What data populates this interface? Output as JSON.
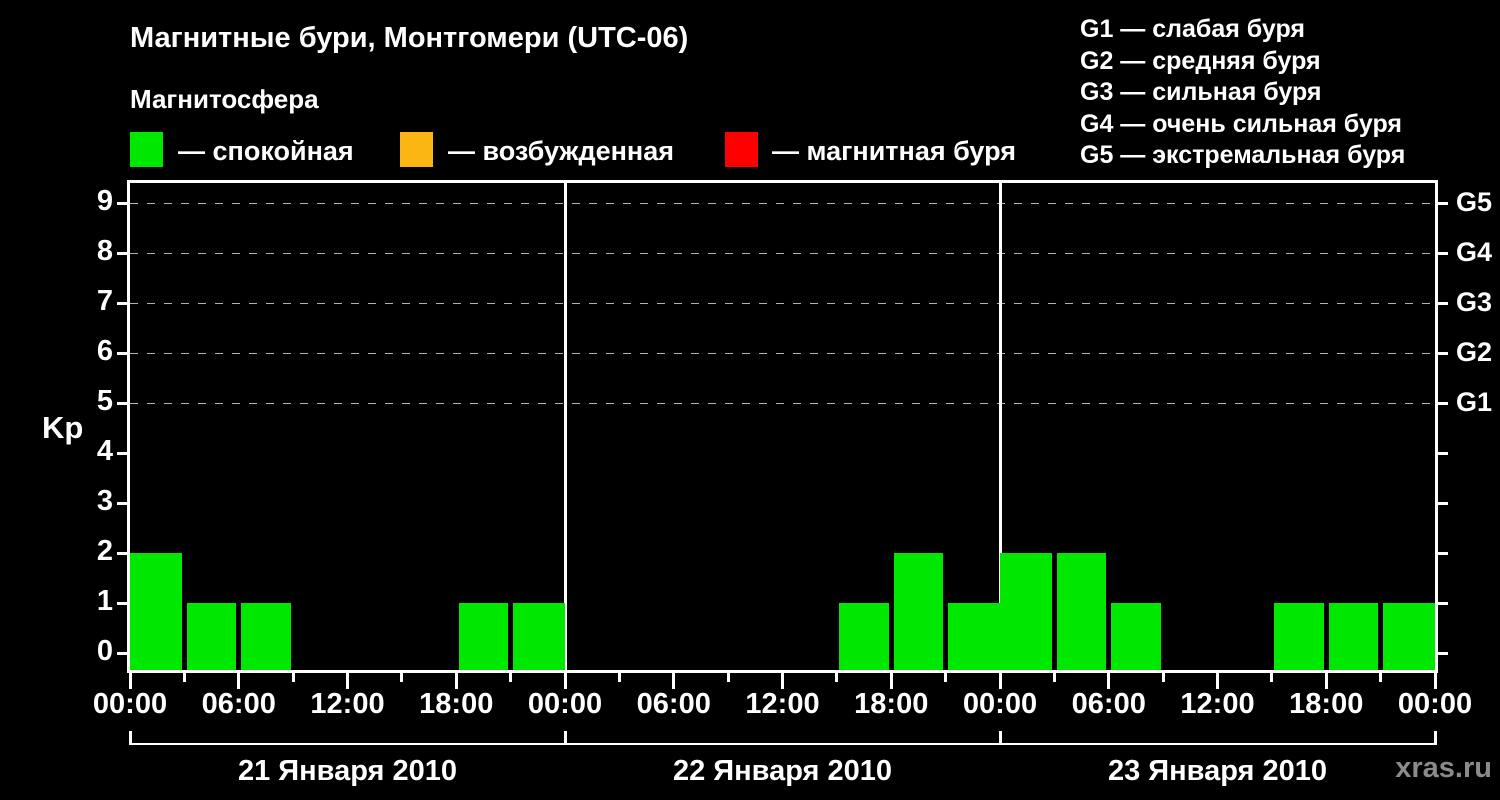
{
  "header": {
    "title": "Магнитные бури, Монтгомери (UTC-06)",
    "subtitle": "Магнитосфера"
  },
  "legend": {
    "items": [
      {
        "name": "quiet",
        "color": "#00e800",
        "label": "— спокойная"
      },
      {
        "name": "excited",
        "color": "#fcb614",
        "label": "— возбужденная"
      },
      {
        "name": "storm",
        "color": "#fe0000",
        "label": "— магнитная буря"
      }
    ]
  },
  "g_legend": {
    "items": [
      "G1 — слабая буря",
      "G2 — средняя буря",
      "G3 — сильная буря",
      "G4 — очень сильная буря",
      "G5 — экстремальная буря"
    ]
  },
  "watermark": "xras.ru",
  "colors": {
    "background": "#000000",
    "text": "#ffffff",
    "axis": "#ffffff",
    "gridline": "#b2b2b2",
    "bar": "#00e800",
    "watermark": "#8b8b8b"
  },
  "chart_data": {
    "type": "bar",
    "title": "Магнитные бури, Монтгомери (UTC-06)",
    "ylabel": "Kp",
    "ylim": [
      0,
      9
    ],
    "y_ticks": [
      0,
      1,
      2,
      3,
      4,
      5,
      6,
      7,
      8,
      9
    ],
    "grid": "dashed horizontal lines at Kp 5,6,7,8,9",
    "legend_position": "top",
    "right_axis_labels": [
      {
        "value": 5,
        "label": "G1"
      },
      {
        "value": 6,
        "label": "G2"
      },
      {
        "value": 7,
        "label": "G3"
      },
      {
        "value": 8,
        "label": "G4"
      },
      {
        "value": 9,
        "label": "G5"
      }
    ],
    "x_major_tick_labels": [
      "00:00",
      "06:00",
      "12:00",
      "18:00"
    ],
    "interval_hours": 3,
    "bar_color": "#00e800",
    "days": [
      {
        "date": "21 Января 2010",
        "values": [
          2,
          1,
          1,
          0,
          0,
          0,
          1,
          1
        ]
      },
      {
        "date": "22 Января 2010",
        "values": [
          0,
          0,
          0,
          0,
          0,
          1,
          2,
          1
        ]
      },
      {
        "date": "23 Января 2010",
        "values": [
          2,
          2,
          1,
          0,
          0,
          1,
          1,
          1
        ]
      }
    ]
  }
}
